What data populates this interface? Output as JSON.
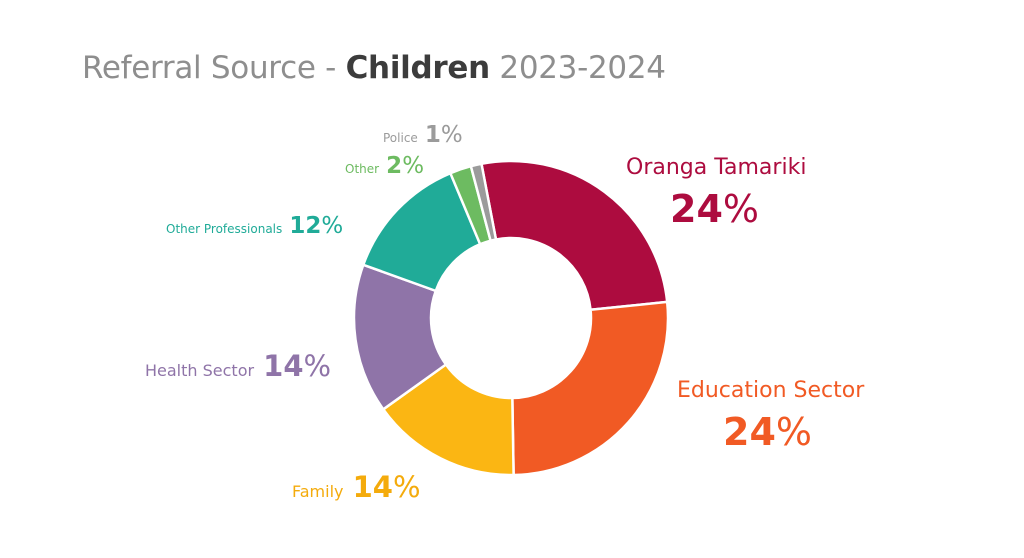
{
  "title": {
    "prefix": "Referral Source - ",
    "bold": "Children",
    "suffix": " 2023-2024"
  },
  "colors": {
    "oranga_tamariki": "#ad0c3f",
    "education_sector": "#f15a24",
    "family": "#fbb613",
    "health_sector": "#8f74a8",
    "other_professionals": "#20ab98",
    "other": "#6dbb61",
    "police": "#9b9b9b"
  },
  "labels": {
    "oranga_tamariki": {
      "name": "Oranga Tamariki",
      "value": "24",
      "unit": "%"
    },
    "education_sector": {
      "name": "Education Sector",
      "value": "24",
      "unit": "%"
    },
    "family": {
      "name": "Family",
      "value": "14",
      "unit": "%"
    },
    "health_sector": {
      "name": "Health Sector",
      "value": "14",
      "unit": "%"
    },
    "other_professionals": {
      "name": "Other Professionals",
      "value": "12",
      "unit": "%"
    },
    "other": {
      "name": "Other",
      "value": "2",
      "unit": "%"
    },
    "police": {
      "name": "Police",
      "value": "1",
      "unit": "%"
    }
  },
  "chart_data": {
    "type": "pie",
    "title": "Referral Source - Children 2023-2024",
    "categories": [
      "Oranga Tamariki",
      "Education Sector",
      "Family",
      "Health Sector",
      "Other Professionals",
      "Other",
      "Police"
    ],
    "values": [
      24,
      24,
      14,
      14,
      12,
      2,
      1
    ],
    "colors": [
      "#ad0c3f",
      "#f15a24",
      "#fbb613",
      "#8f74a8",
      "#20ab98",
      "#6dbb61",
      "#9b9b9b"
    ],
    "unit": "%",
    "donut": true
  }
}
